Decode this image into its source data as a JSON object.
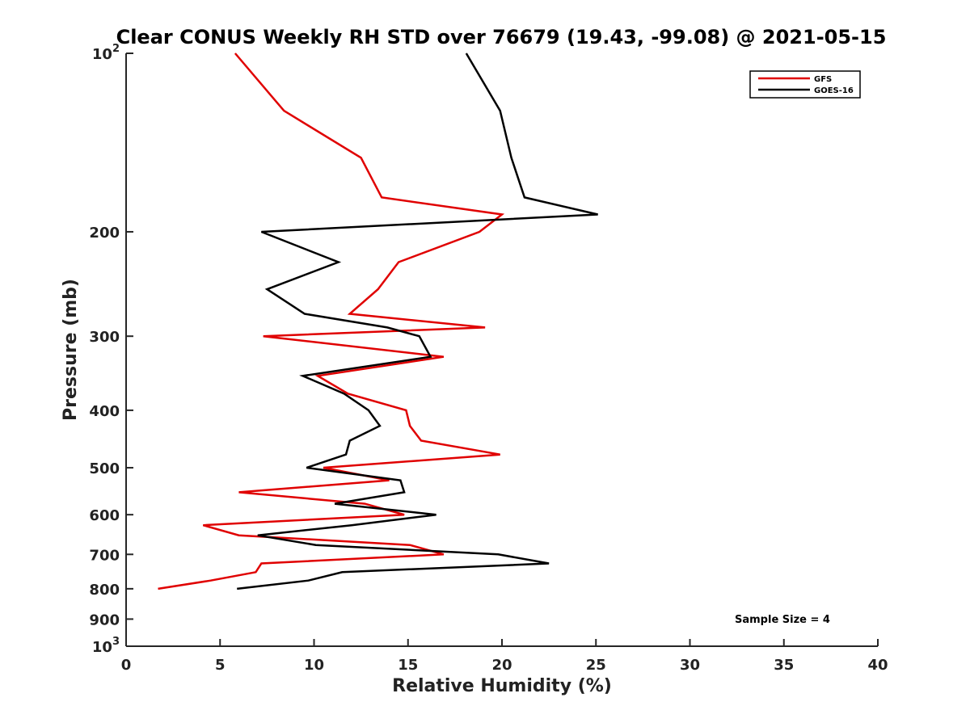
{
  "chart_data": {
    "type": "line",
    "title": "Clear CONUS Weekly RH STD over 76679 (19.43, -99.08) @ 2021-05-15",
    "xlabel": "Relative Humidity (%)",
    "ylabel": "Pressure (mb)",
    "xlim": [
      0,
      40
    ],
    "ylim": [
      100,
      1000
    ],
    "yscale": "log",
    "y_reversed": true,
    "x_ticks": [
      0,
      5,
      10,
      15,
      20,
      25,
      30,
      35,
      40
    ],
    "x_tick_labels": [
      "0",
      "5",
      "10",
      "15",
      "20",
      "25",
      "30",
      "35",
      "40"
    ],
    "y_ticks": [
      100,
      200,
      300,
      400,
      500,
      600,
      700,
      800,
      900,
      1000
    ],
    "y_tick_labels": [
      {
        "base": "10",
        "exp": "2"
      },
      {
        "base": "200",
        "exp": ""
      },
      {
        "base": "300",
        "exp": ""
      },
      {
        "base": "400",
        "exp": ""
      },
      {
        "base": "500",
        "exp": ""
      },
      {
        "base": "600",
        "exp": ""
      },
      {
        "base": "700",
        "exp": ""
      },
      {
        "base": "800",
        "exp": ""
      },
      {
        "base": "900",
        "exp": ""
      },
      {
        "base": "10",
        "exp": "3"
      }
    ],
    "grid": false,
    "legend_position": "top-right",
    "annotation": "Sample Size = 4",
    "series": [
      {
        "name": "GFS",
        "color": "#e00000",
        "points": [
          [
            5.8,
            100
          ],
          [
            8.4,
            125
          ],
          [
            12.5,
            150
          ],
          [
            13.6,
            175
          ],
          [
            20.0,
            187
          ],
          [
            18.8,
            200
          ],
          [
            14.5,
            225
          ],
          [
            13.4,
            250
          ],
          [
            11.9,
            275
          ],
          [
            19.1,
            290
          ],
          [
            7.3,
            300
          ],
          [
            16.9,
            325
          ],
          [
            10.2,
            350
          ],
          [
            11.8,
            375
          ],
          [
            14.9,
            400
          ],
          [
            15.1,
            425
          ],
          [
            15.7,
            450
          ],
          [
            19.9,
            475
          ],
          [
            10.5,
            500
          ],
          [
            14.0,
            525
          ],
          [
            6.0,
            550
          ],
          [
            12.7,
            575
          ],
          [
            14.8,
            600
          ],
          [
            4.1,
            625
          ],
          [
            6.0,
            650
          ],
          [
            15.1,
            675
          ],
          [
            16.9,
            700
          ],
          [
            7.2,
            725
          ],
          [
            6.9,
            750
          ],
          [
            4.5,
            775
          ],
          [
            1.7,
            800
          ]
        ]
      },
      {
        "name": "GOES-16",
        "color": "#000000",
        "points": [
          [
            18.1,
            100
          ],
          [
            19.9,
            125
          ],
          [
            20.5,
            150
          ],
          [
            21.2,
            175
          ],
          [
            25.1,
            187
          ],
          [
            7.2,
            200
          ],
          [
            11.3,
            225
          ],
          [
            7.5,
            250
          ],
          [
            9.5,
            275
          ],
          [
            13.9,
            290
          ],
          [
            15.6,
            300
          ],
          [
            16.2,
            325
          ],
          [
            9.4,
            350
          ],
          [
            11.6,
            375
          ],
          [
            12.9,
            400
          ],
          [
            13.5,
            425
          ],
          [
            11.9,
            450
          ],
          [
            11.7,
            475
          ],
          [
            9.6,
            500
          ],
          [
            14.6,
            525
          ],
          [
            14.8,
            550
          ],
          [
            11.1,
            575
          ],
          [
            16.5,
            600
          ],
          [
            12.0,
            625
          ],
          [
            7.0,
            650
          ],
          [
            10.1,
            675
          ],
          [
            19.8,
            700
          ],
          [
            22.5,
            725
          ],
          [
            11.5,
            750
          ],
          [
            9.7,
            775
          ],
          [
            5.9,
            800
          ]
        ]
      }
    ]
  }
}
